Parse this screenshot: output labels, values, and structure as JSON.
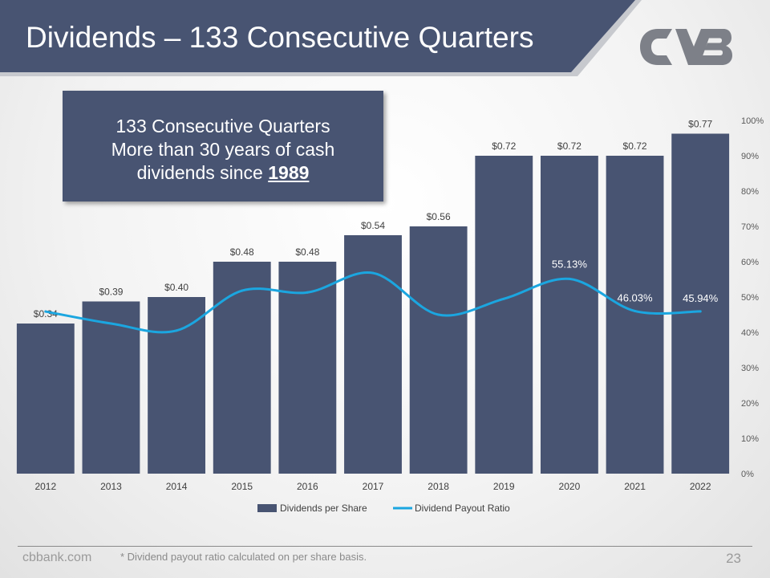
{
  "header": {
    "title": "Dividends – 133 Consecutive Quarters",
    "logo_text": "CVB",
    "banner_color": "#485472"
  },
  "callout": {
    "line1": "133 Consecutive Quarters",
    "line2": "More than 30 years of cash",
    "line3_prefix": "dividends since ",
    "line3_year": "1989"
  },
  "chart_data": {
    "type": "bar",
    "title": "",
    "categories": [
      "2012",
      "2013",
      "2014",
      "2015",
      "2016",
      "2017",
      "2018",
      "2019",
      "2020",
      "2021",
      "2022"
    ],
    "series": [
      {
        "name": "Dividends per Share",
        "type": "bar",
        "axis": "left",
        "color": "#485472",
        "values": [
          0.34,
          0.39,
          0.4,
          0.48,
          0.48,
          0.54,
          0.56,
          0.72,
          0.72,
          0.72,
          0.77
        ],
        "labels": [
          "$0.34",
          "$0.39",
          "$0.40",
          "$0.48",
          "$0.48",
          "$0.54",
          "$0.56",
          "$0.72",
          "$0.72",
          "$0.72",
          "$0.77"
        ]
      },
      {
        "name": "Dividend Payout Ratio",
        "type": "line",
        "axis": "right",
        "color": "#1ba6e0",
        "values": [
          45.9,
          42.5,
          40.5,
          51.8,
          51.3,
          56.8,
          45.0,
          49.5,
          55.13,
          46.03,
          45.94
        ],
        "point_labels": {
          "8": "55.13%",
          "9": "46.03%",
          "10": "45.94%"
        }
      }
    ],
    "left_axis": {
      "min": 0,
      "max": 0.8,
      "visible": false
    },
    "right_axis": {
      "min": 0,
      "max": 100,
      "step": 10,
      "ticks": [
        "0%",
        "10%",
        "20%",
        "30%",
        "40%",
        "50%",
        "60%",
        "70%",
        "80%",
        "90%",
        "100%"
      ]
    },
    "legend": {
      "position": "bottom",
      "entries": [
        "Dividends per Share",
        "Dividend Payout Ratio"
      ]
    },
    "grid": false
  },
  "footer": {
    "site": "cbbank.com",
    "note": "* Dividend payout ratio calculated on per share basis.",
    "page": "23"
  }
}
